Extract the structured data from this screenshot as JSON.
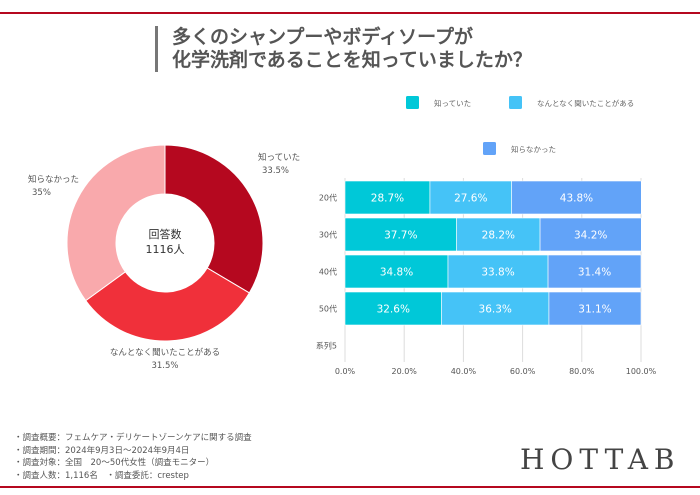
{
  "title": {
    "line1": "多くのシャンプーやボディソープが",
    "line2": "化学洗剤であることを知っていましたか？"
  },
  "colors": {
    "accent": "#b5081f"
  },
  "chart_data": [
    {
      "type": "pie",
      "donut": true,
      "center_label": [
        "回答数",
        "1116人"
      ],
      "slices": [
        {
          "label": "知っていた",
          "value": 33.5,
          "display": "33.5%",
          "color": "#b5081f"
        },
        {
          "label": "なんとなく聞いたことがある",
          "value": 31.5,
          "display": "31.5%",
          "color": "#f0303a"
        },
        {
          "label": "知らなかった",
          "value": 35,
          "display": "35%",
          "color": "#f9a9ac"
        }
      ]
    },
    {
      "type": "bar",
      "orientation": "horizontal",
      "stacked": "percent",
      "categories": [
        "20代",
        "30代",
        "40代",
        "50代",
        "系列5"
      ],
      "series": [
        {
          "name": "知っていた",
          "color": "#00c8d8",
          "values": [
            28.7,
            37.7,
            34.8,
            32.6,
            null
          ]
        },
        {
          "name": "なんとなく聞いたことがある",
          "color": "#45c3f7",
          "values": [
            27.6,
            28.2,
            33.8,
            36.3,
            null
          ]
        },
        {
          "name": "知らなかった",
          "color": "#62a3f8",
          "values": [
            43.8,
            34.2,
            31.4,
            31.1,
            null
          ]
        }
      ],
      "xticks": [
        "0.0%",
        "20.0%",
        "40.0%",
        "60.0%",
        "80.0%",
        "100.0%"
      ],
      "xlim": [
        0,
        100
      ],
      "legend": "top",
      "grid": true
    }
  ],
  "notes": [
    "・調査概要：フェムケア・デリケートゾーンケアに関する調査",
    "・調査期間：2024年9月3日～2024年9月4日",
    "・調査対象：全国　20～50代女性（調査モニター）",
    "・調査人数：1,116名　・調査委託：crestep"
  ],
  "logo": "HOTTAB"
}
